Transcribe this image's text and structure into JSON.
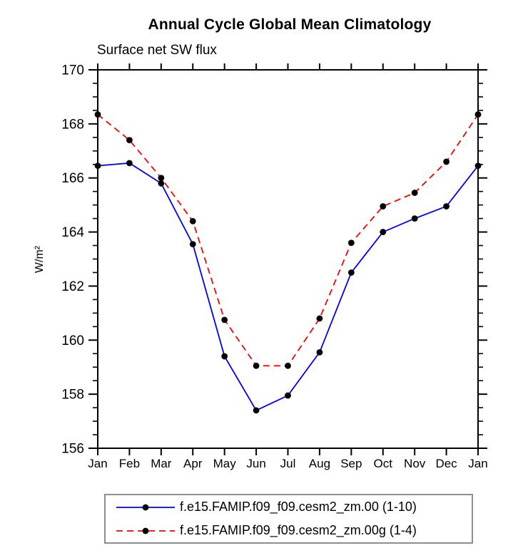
{
  "chart_data": {
    "type": "line",
    "title": "Annual Cycle Global Mean Climatology",
    "subtitle": "Surface net SW flux",
    "ylabel": "W/m²",
    "xlabel": "",
    "ylim": [
      156,
      170
    ],
    "ytick_step": 2,
    "yminor_step": 0.5,
    "yticks": [
      156,
      158,
      160,
      162,
      164,
      166,
      168,
      170
    ],
    "categories": [
      "Jan",
      "Feb",
      "Mar",
      "Apr",
      "May",
      "Jun",
      "Jul",
      "Aug",
      "Sep",
      "Oct",
      "Nov",
      "Dec",
      "Jan"
    ],
    "grid": false,
    "legend_position": "bottom",
    "series": [
      {
        "name": "f.e15.FAMIP.f09_f09.cesm2_zm.00 (1-10)",
        "color": "#0000ff",
        "line_style": "solid",
        "marker": "filled-circle",
        "marker_color": "#000000",
        "values": [
          166.45,
          166.55,
          165.8,
          163.55,
          159.4,
          157.4,
          157.95,
          159.55,
          162.5,
          164.0,
          164.5,
          164.95,
          166.45
        ]
      },
      {
        "name": "f.e15.FAMIP.f09_f09.cesm2_zm.00g (1-4)",
        "color": "#ff0000",
        "line_style": "dashed",
        "marker": "filled-circle",
        "marker_color": "#000000",
        "values": [
          168.35,
          167.4,
          166.0,
          164.4,
          160.75,
          159.05,
          159.05,
          160.8,
          163.6,
          164.95,
          165.45,
          166.6,
          168.35
        ]
      }
    ]
  },
  "colors": {
    "axis": "#000000",
    "tick_text": "#000000",
    "legend_border": "#8f8f8f",
    "background": "#ffffff"
  }
}
